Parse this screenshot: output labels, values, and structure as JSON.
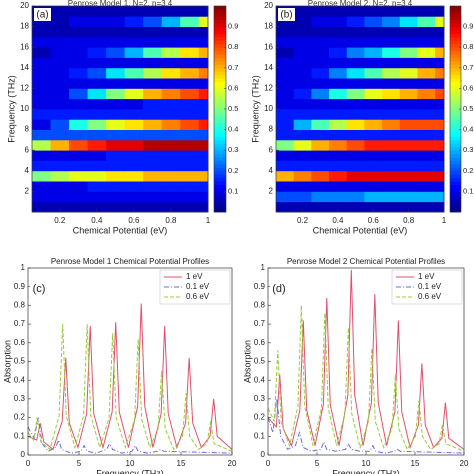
{
  "chart_data": [
    {
      "type": "heatmap",
      "label": "(a)",
      "title": "Penrose Model 1, N=2, n=3.4",
      "xlabel": "Chemical Potential (eV)",
      "ylabel": "Frequency (THz)",
      "x": [
        0.1,
        0.2,
        0.3,
        0.4,
        0.5,
        0.6,
        0.7,
        0.8,
        0.9,
        1.0
      ],
      "y": [
        0.5,
        1.5,
        2.5,
        3.5,
        4.5,
        5.5,
        6.5,
        7.5,
        8.5,
        9.5,
        10.5,
        11.5,
        12.5,
        13.5,
        14.5,
        15.5,
        16.5,
        17.5,
        18.5,
        19.5
      ],
      "z": [
        [
          0.05,
          0.05,
          0.05,
          0.05,
          0.05,
          0.05,
          0.05,
          0.05,
          0.05,
          0.05
        ],
        [
          0.1,
          0.1,
          0.1,
          0.1,
          0.1,
          0.1,
          0.1,
          0.1,
          0.1,
          0.1
        ],
        [
          0.1,
          0.1,
          0.1,
          0.15,
          0.15,
          0.15,
          0.15,
          0.15,
          0.15,
          0.15
        ],
        [
          0.5,
          0.55,
          0.6,
          0.6,
          0.65,
          0.65,
          0.7,
          0.7,
          0.7,
          0.7
        ],
        [
          0.15,
          0.15,
          0.15,
          0.15,
          0.15,
          0.15,
          0.15,
          0.15,
          0.15,
          0.15
        ],
        [
          0.1,
          0.1,
          0.1,
          0.1,
          0.15,
          0.15,
          0.15,
          0.15,
          0.15,
          0.15
        ],
        [
          0.55,
          0.7,
          0.8,
          0.85,
          0.9,
          0.9,
          0.95,
          0.95,
          0.95,
          0.95
        ],
        [
          0.2,
          0.2,
          0.2,
          0.2,
          0.2,
          0.2,
          0.2,
          0.2,
          0.2,
          0.2
        ],
        [
          0.1,
          0.2,
          0.4,
          0.5,
          0.6,
          0.65,
          0.7,
          0.75,
          0.8,
          0.85
        ],
        [
          0.15,
          0.15,
          0.15,
          0.15,
          0.15,
          0.15,
          0.15,
          0.15,
          0.15,
          0.15
        ],
        [
          0.1,
          0.1,
          0.1,
          0.1,
          0.1,
          0.1,
          0.15,
          0.15,
          0.15,
          0.15
        ],
        [
          0.1,
          0.1,
          0.2,
          0.35,
          0.5,
          0.6,
          0.7,
          0.75,
          0.8,
          0.85
        ],
        [
          0.1,
          0.1,
          0.1,
          0.1,
          0.1,
          0.1,
          0.1,
          0.1,
          0.1,
          0.1
        ],
        [
          0.1,
          0.1,
          0.15,
          0.2,
          0.35,
          0.45,
          0.55,
          0.65,
          0.7,
          0.75
        ],
        [
          0.1,
          0.1,
          0.1,
          0.1,
          0.1,
          0.1,
          0.1,
          0.1,
          0.1,
          0.1
        ],
        [
          0.05,
          0.1,
          0.1,
          0.15,
          0.2,
          0.3,
          0.45,
          0.55,
          0.65,
          0.7
        ],
        [
          0.1,
          0.1,
          0.1,
          0.1,
          0.1,
          0.1,
          0.1,
          0.1,
          0.1,
          0.1
        ],
        [
          0.05,
          0.05,
          0.05,
          0.05,
          0.05,
          0.05,
          0.05,
          0.05,
          0.05,
          0.05
        ],
        [
          0.05,
          0.05,
          0.1,
          0.1,
          0.1,
          0.15,
          0.2,
          0.3,
          0.45,
          0.6
        ],
        [
          0.05,
          0.05,
          0.05,
          0.05,
          0.05,
          0.05,
          0.05,
          0.05,
          0.05,
          0.05
        ]
      ],
      "xlim": [
        0.05,
        1
      ],
      "ylim": [
        0,
        20
      ],
      "xticks": [
        0.2,
        0.4,
        0.6,
        0.8,
        1
      ],
      "yticks": [
        2,
        4,
        6,
        8,
        10,
        12,
        14,
        16,
        18,
        20
      ],
      "clim": [
        0,
        1
      ],
      "cticks": [
        0.1,
        0.2,
        0.3,
        0.4,
        0.5,
        0.6,
        0.7,
        0.8,
        0.9
      ],
      "colormap": "jet"
    },
    {
      "type": "heatmap",
      "label": "(b)",
      "title": "Penrose Model 2, N=2, n=3.4",
      "xlabel": "Chemical Potential (eV)",
      "ylabel": "Frequency (THz)",
      "x": [
        0.1,
        0.2,
        0.3,
        0.4,
        0.5,
        0.6,
        0.7,
        0.8,
        0.9,
        1.0
      ],
      "y": [
        0.5,
        1.5,
        2.5,
        3.5,
        4.5,
        5.5,
        6.5,
        7.5,
        8.5,
        9.5,
        10.5,
        11.5,
        12.5,
        13.5,
        14.5,
        15.5,
        16.5,
        17.5,
        18.5,
        19.5
      ],
      "z": [
        [
          0.05,
          0.05,
          0.05,
          0.05,
          0.05,
          0.05,
          0.05,
          0.05,
          0.05,
          0.05
        ],
        [
          0.2,
          0.2,
          0.25,
          0.25,
          0.25,
          0.3,
          0.3,
          0.3,
          0.3,
          0.3
        ],
        [
          0.1,
          0.1,
          0.1,
          0.1,
          0.1,
          0.1,
          0.1,
          0.1,
          0.1,
          0.1
        ],
        [
          0.7,
          0.75,
          0.8,
          0.85,
          0.9,
          0.9,
          0.9,
          0.9,
          0.9,
          0.9
        ],
        [
          0.15,
          0.15,
          0.15,
          0.15,
          0.15,
          0.15,
          0.15,
          0.15,
          0.15,
          0.15
        ],
        [
          0.1,
          0.1,
          0.1,
          0.1,
          0.1,
          0.1,
          0.1,
          0.1,
          0.1,
          0.1
        ],
        [
          0.5,
          0.6,
          0.7,
          0.75,
          0.8,
          0.85,
          0.85,
          0.85,
          0.85,
          0.85
        ],
        [
          0.15,
          0.15,
          0.15,
          0.15,
          0.15,
          0.15,
          0.15,
          0.15,
          0.15,
          0.15
        ],
        [
          0.15,
          0.3,
          0.45,
          0.55,
          0.65,
          0.7,
          0.75,
          0.8,
          0.8,
          0.8
        ],
        [
          0.15,
          0.15,
          0.15,
          0.15,
          0.15,
          0.15,
          0.15,
          0.15,
          0.15,
          0.15
        ],
        [
          0.1,
          0.1,
          0.1,
          0.1,
          0.1,
          0.1,
          0.1,
          0.1,
          0.1,
          0.1
        ],
        [
          0.1,
          0.15,
          0.25,
          0.4,
          0.5,
          0.6,
          0.65,
          0.7,
          0.75,
          0.8
        ],
        [
          0.1,
          0.1,
          0.1,
          0.1,
          0.1,
          0.1,
          0.1,
          0.1,
          0.1,
          0.1
        ],
        [
          0.1,
          0.1,
          0.15,
          0.25,
          0.35,
          0.45,
          0.55,
          0.6,
          0.7,
          0.75
        ],
        [
          0.1,
          0.1,
          0.1,
          0.1,
          0.1,
          0.1,
          0.1,
          0.1,
          0.1,
          0.1
        ],
        [
          0.05,
          0.1,
          0.1,
          0.15,
          0.25,
          0.3,
          0.4,
          0.5,
          0.6,
          0.7
        ],
        [
          0.1,
          0.1,
          0.1,
          0.1,
          0.1,
          0.1,
          0.1,
          0.1,
          0.1,
          0.1
        ],
        [
          0.05,
          0.05,
          0.05,
          0.05,
          0.05,
          0.05,
          0.05,
          0.05,
          0.05,
          0.05
        ],
        [
          0.05,
          0.05,
          0.1,
          0.1,
          0.15,
          0.2,
          0.25,
          0.35,
          0.45,
          0.6
        ],
        [
          0.05,
          0.05,
          0.05,
          0.05,
          0.05,
          0.05,
          0.05,
          0.05,
          0.05,
          0.05
        ]
      ],
      "xlim": [
        0.05,
        1
      ],
      "ylim": [
        0,
        20
      ],
      "xticks": [
        0.2,
        0.4,
        0.6,
        0.8,
        1
      ],
      "yticks": [
        2,
        4,
        6,
        8,
        10,
        12,
        14,
        16,
        18,
        20
      ],
      "clim": [
        0,
        1
      ],
      "cticks": [
        0.1,
        0.2,
        0.3,
        0.4,
        0.5,
        0.6,
        0.7,
        0.8,
        0.9
      ],
      "colormap": "jet"
    },
    {
      "type": "line",
      "label": "(c)",
      "title": "Penrose Model 1 Chemical Potential Profiles",
      "xlabel": "Frequency (THz)",
      "ylabel": "Absorption",
      "xlim": [
        0,
        20
      ],
      "ylim": [
        0,
        1
      ],
      "xticks": [
        0,
        5,
        10,
        15,
        20
      ],
      "yticks": [
        0,
        0.1,
        0.2,
        0.3,
        0.4,
        0.5,
        0.6,
        0.7,
        0.8,
        0.9,
        1
      ],
      "legend": "upper right",
      "series": [
        {
          "name": "1 eV",
          "color": "#e0506e",
          "style": "solid",
          "x": [
            0,
            0.85,
            1.2,
            1.55,
            2.45,
            3.35,
            3.7,
            4.05,
            4.9,
            5.75,
            6.1,
            6.45,
            7.35,
            8.25,
            8.6,
            8.95,
            9.85,
            10.75,
            11.1,
            11.45,
            12.25,
            13.05,
            13.4,
            13.75,
            14.6,
            15.45,
            15.8,
            16.15,
            17.0,
            17.85,
            18.2,
            18.55,
            20
          ],
          "values": [
            0.1,
            0.08,
            0.17,
            0.07,
            0.03,
            0.18,
            0.52,
            0.17,
            0.04,
            0.22,
            0.69,
            0.22,
            0.04,
            0.23,
            0.71,
            0.23,
            0.04,
            0.26,
            0.81,
            0.26,
            0.04,
            0.22,
            0.69,
            0.22,
            0.04,
            0.17,
            0.52,
            0.17,
            0.04,
            0.1,
            0.3,
            0.1,
            0.03
          ]
        },
        {
          "name": "0.1 eV",
          "color": "#6a6ae0",
          "style": "dashdot",
          "x": [
            0,
            0.6,
            1.0,
            1.4,
            2.0,
            2.7,
            3.0,
            3.3,
            4.2,
            5.2,
            5.5,
            5.8,
            6.7,
            7.7,
            8.0,
            8.3,
            9.2,
            10.2,
            10.5,
            10.8,
            11.7,
            12.7,
            13.0,
            13.3,
            20
          ],
          "values": [
            0.15,
            0.09,
            0.2,
            0.06,
            0.02,
            0.04,
            0.08,
            0.03,
            0.01,
            0.02,
            0.05,
            0.02,
            0.01,
            0.03,
            0.06,
            0.03,
            0.01,
            0.02,
            0.05,
            0.02,
            0.01,
            0.02,
            0.03,
            0.02,
            0.01
          ]
        },
        {
          "name": "0.6 eV",
          "color": "#99cc33",
          "style": "dashed",
          "x": [
            0,
            0.55,
            0.9,
            1.25,
            2.15,
            3.05,
            3.4,
            3.75,
            4.6,
            5.45,
            5.8,
            6.15,
            7.05,
            7.95,
            8.3,
            8.65,
            9.55,
            10.45,
            10.8,
            11.15,
            11.95,
            12.75,
            13.1,
            13.45,
            14.3,
            15.15,
            15.5,
            15.85,
            16.7,
            17.55,
            17.9,
            18.25,
            20
          ],
          "values": [
            0.12,
            0.08,
            0.2,
            0.07,
            0.03,
            0.21,
            0.7,
            0.21,
            0.04,
            0.21,
            0.7,
            0.21,
            0.04,
            0.2,
            0.65,
            0.2,
            0.04,
            0.19,
            0.62,
            0.19,
            0.04,
            0.14,
            0.45,
            0.14,
            0.03,
            0.1,
            0.33,
            0.1,
            0.03,
            0.06,
            0.18,
            0.06,
            0.02
          ]
        }
      ]
    },
    {
      "type": "line",
      "label": "(d)",
      "title": "Penrose Model 2 Chemical Potential Profiles",
      "xlabel": "Frequency (THz)",
      "ylabel": "Absorption",
      "xlim": [
        0,
        20
      ],
      "ylim": [
        0,
        1
      ],
      "xticks": [
        0,
        5,
        10,
        15,
        20
      ],
      "yticks": [
        0,
        0.1,
        0.2,
        0.3,
        0.4,
        0.5,
        0.6,
        0.7,
        0.8,
        0.9,
        1
      ],
      "legend": "upper right",
      "series": [
        {
          "name": "1 eV",
          "color": "#e0506e",
          "style": "solid",
          "x": [
            0,
            0.85,
            1.2,
            1.55,
            2.4,
            3.25,
            3.6,
            3.95,
            4.8,
            5.65,
            6.0,
            6.35,
            7.25,
            8.15,
            8.5,
            8.85,
            9.7,
            10.55,
            10.9,
            11.25,
            12.1,
            12.95,
            13.3,
            13.65,
            14.5,
            15.35,
            15.7,
            16.05,
            16.9,
            17.75,
            18.1,
            18.45,
            20
          ],
          "values": [
            0.2,
            0.15,
            0.43,
            0.14,
            0.05,
            0.24,
            0.72,
            0.24,
            0.05,
            0.27,
            0.84,
            0.27,
            0.05,
            0.32,
            0.99,
            0.32,
            0.05,
            0.28,
            0.86,
            0.28,
            0.05,
            0.23,
            0.72,
            0.23,
            0.04,
            0.16,
            0.49,
            0.16,
            0.04,
            0.09,
            0.28,
            0.09,
            0.03
          ]
        },
        {
          "name": "0.1 eV",
          "color": "#6a6ae0",
          "style": "dashdot",
          "x": [
            0,
            0.5,
            0.9,
            1.3,
            2.0,
            2.8,
            3.2,
            3.6,
            4.4,
            5.4,
            5.7,
            6.0,
            6.9,
            7.9,
            8.2,
            8.5,
            9.4,
            10.4,
            10.7,
            11.0,
            11.9,
            12.9,
            13.2,
            13.5,
            20
          ],
          "values": [
            0.2,
            0.12,
            0.3,
            0.1,
            0.03,
            0.05,
            0.12,
            0.04,
            0.02,
            0.03,
            0.07,
            0.03,
            0.02,
            0.03,
            0.06,
            0.03,
            0.02,
            0.02,
            0.05,
            0.02,
            0.01,
            0.02,
            0.03,
            0.02,
            0.01
          ]
        },
        {
          "name": "0.6 eV",
          "color": "#99cc33",
          "style": "dashed",
          "x": [
            0,
            0.65,
            1.0,
            1.35,
            2.2,
            3.05,
            3.4,
            3.75,
            4.6,
            5.45,
            5.8,
            6.15,
            7.0,
            7.85,
            8.2,
            8.55,
            9.4,
            10.25,
            10.6,
            10.95,
            11.8,
            12.65,
            13.0,
            13.35,
            14.2,
            15.05,
            15.4,
            15.75,
            16.6,
            17.45,
            17.8,
            18.15,
            20
          ],
          "values": [
            0.25,
            0.18,
            0.56,
            0.17,
            0.05,
            0.26,
            0.8,
            0.26,
            0.05,
            0.25,
            0.76,
            0.25,
            0.05,
            0.22,
            0.68,
            0.22,
            0.04,
            0.18,
            0.57,
            0.18,
            0.04,
            0.14,
            0.43,
            0.14,
            0.03,
            0.1,
            0.29,
            0.1,
            0.03,
            0.06,
            0.16,
            0.06,
            0.02
          ]
        }
      ]
    }
  ]
}
